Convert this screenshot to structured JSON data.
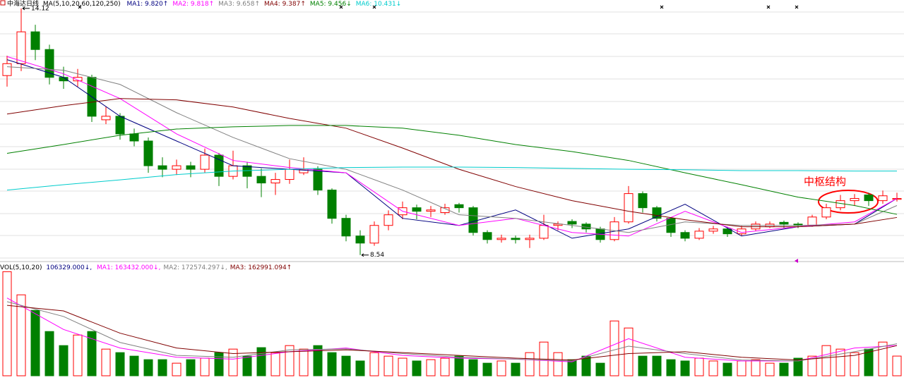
{
  "chart_data": {
    "type": "candlestick",
    "title": "中海达日线",
    "ma_params": "MA(5,10,20,60,120,250)",
    "annotation": "中枢结构",
    "ylim": [
      8.44,
      14.31
    ],
    "up_color": "#ff0000",
    "down_color": "#008000",
    "candles": [
      [
        12.6,
        13.05,
        12.35,
        12.87
      ],
      [
        12.87,
        14.12,
        12.7,
        13.59
      ],
      [
        13.59,
        13.75,
        12.95,
        13.19
      ],
      [
        13.19,
        13.3,
        12.4,
        12.56
      ],
      [
        12.56,
        12.8,
        12.3,
        12.48
      ],
      [
        12.48,
        12.75,
        12.35,
        12.56
      ],
      [
        12.56,
        12.62,
        11.55,
        11.68
      ],
      [
        11.6,
        11.9,
        11.5,
        11.68
      ],
      [
        11.68,
        11.75,
        11.15,
        11.28
      ],
      [
        11.28,
        11.4,
        11.0,
        11.12
      ],
      [
        11.12,
        11.2,
        10.4,
        10.56
      ],
      [
        10.56,
        10.75,
        10.3,
        10.48
      ],
      [
        10.48,
        10.7,
        10.35,
        10.56
      ],
      [
        10.56,
        10.65,
        10.3,
        10.48
      ],
      [
        10.48,
        10.95,
        10.4,
        10.8
      ],
      [
        10.8,
        10.85,
        10.1,
        10.32
      ],
      [
        10.32,
        10.9,
        10.25,
        10.56
      ],
      [
        10.56,
        10.65,
        10.05,
        10.32
      ],
      [
        10.32,
        10.5,
        9.85,
        10.17
      ],
      [
        10.17,
        10.4,
        9.9,
        10.25
      ],
      [
        10.25,
        10.7,
        10.15,
        10.48
      ],
      [
        10.4,
        10.75,
        10.35,
        10.48
      ],
      [
        10.48,
        10.55,
        9.9,
        10.01
      ],
      [
        10.01,
        10.05,
        9.25,
        9.37
      ],
      [
        9.37,
        9.45,
        8.85,
        8.97
      ],
      [
        8.97,
        9.1,
        8.54,
        8.81
      ],
      [
        8.81,
        9.3,
        8.75,
        9.21
      ],
      [
        9.21,
        9.55,
        9.1,
        9.45
      ],
      [
        9.45,
        9.75,
        9.35,
        9.61
      ],
      [
        9.61,
        9.68,
        9.35,
        9.53
      ],
      [
        9.53,
        9.65,
        9.4,
        9.56
      ],
      [
        9.5,
        9.7,
        9.45,
        9.61
      ],
      [
        9.68,
        9.72,
        9.5,
        9.61
      ],
      [
        9.61,
        9.65,
        8.98,
        9.05
      ],
      [
        9.05,
        9.1,
        8.8,
        8.89
      ],
      [
        8.89,
        9.0,
        8.82,
        8.92
      ],
      [
        8.92,
        8.98,
        8.8,
        8.89
      ],
      [
        8.89,
        9.0,
        8.7,
        8.92
      ],
      [
        8.92,
        9.45,
        8.88,
        9.21
      ],
      [
        9.21,
        9.3,
        9.1,
        9.24
      ],
      [
        9.3,
        9.35,
        9.15,
        9.24
      ],
      [
        9.24,
        9.28,
        9.05,
        9.13
      ],
      [
        9.13,
        9.18,
        8.82,
        8.89
      ],
      [
        8.89,
        9.4,
        8.85,
        9.29
      ],
      [
        9.29,
        10.1,
        9.25,
        9.93
      ],
      [
        9.93,
        9.98,
        9.5,
        9.61
      ],
      [
        9.61,
        9.65,
        9.3,
        9.37
      ],
      [
        9.37,
        9.4,
        8.95,
        9.05
      ],
      [
        9.05,
        9.1,
        8.85,
        8.92
      ],
      [
        8.92,
        9.15,
        8.88,
        9.08
      ],
      [
        9.08,
        9.2,
        9.02,
        9.13
      ],
      [
        9.13,
        9.18,
        8.95,
        9.02
      ],
      [
        9.02,
        9.2,
        8.98,
        9.13
      ],
      [
        9.13,
        9.3,
        9.08,
        9.24
      ],
      [
        9.18,
        9.3,
        9.15,
        9.24
      ],
      [
        9.28,
        9.32,
        9.15,
        9.24
      ],
      [
        9.24,
        9.28,
        9.15,
        9.21
      ],
      [
        9.21,
        9.45,
        9.18,
        9.4
      ],
      [
        9.4,
        9.7,
        9.35,
        9.61
      ],
      [
        9.61,
        9.9,
        9.55,
        9.77
      ],
      [
        9.77,
        9.92,
        9.65,
        9.82
      ],
      [
        9.9,
        9.95,
        9.65,
        9.77
      ],
      [
        9.77,
        10.0,
        9.7,
        9.88
      ],
      [
        9.8,
        9.95,
        9.75,
        9.82
      ]
    ],
    "ma_x": [
      0,
      4,
      8,
      12,
      16,
      20,
      24,
      28,
      32,
      36,
      40,
      44,
      48,
      52,
      56,
      60,
      63
    ],
    "series": [
      {
        "name": "MA1: 9.820↑",
        "color": "#000080",
        "values": [
          12.96,
          12.56,
          11.68,
          11.12,
          10.56,
          10.48,
          10.4,
          9.37,
          9.21,
          9.56,
          8.92,
          9.13,
          9.69,
          8.97,
          9.18,
          9.24,
          9.82
        ]
      },
      {
        "name": "MA2: 9.818↑",
        "color": "#ff00ff",
        "values": [
          13.03,
          12.64,
          12.08,
          11.28,
          10.68,
          10.52,
          10.4,
          9.53,
          9.21,
          9.37,
          9.05,
          8.97,
          9.53,
          9.05,
          9.18,
          9.29,
          9.82
        ]
      },
      {
        "name": "MA3: 9.658↑",
        "color": "#808080",
        "values": [
          12.8,
          12.72,
          12.4,
          11.76,
          11.2,
          10.72,
          10.48,
          10.01,
          9.45,
          9.37,
          9.21,
          9.05,
          9.29,
          9.21,
          9.21,
          9.24,
          9.66
        ]
      },
      {
        "name": "MA4: 9.387↑",
        "color": "#800000",
        "values": [
          11.73,
          11.92,
          12.08,
          12.05,
          11.89,
          11.63,
          11.41,
          10.96,
          10.48,
          10.09,
          9.77,
          9.53,
          9.34,
          9.18,
          9.18,
          9.24,
          9.39
        ]
      },
      {
        "name": "MA5: 9.456↓",
        "color": "#008000",
        "values": [
          10.84,
          11.04,
          11.25,
          11.39,
          11.44,
          11.47,
          11.47,
          11.41,
          11.25,
          11.04,
          10.88,
          10.68,
          10.4,
          10.13,
          9.85,
          9.66,
          9.46
        ]
      },
      {
        "name": "MA6: 10.431↓",
        "color": "#00cccc",
        "values": [
          10.01,
          10.13,
          10.24,
          10.36,
          10.44,
          10.48,
          10.52,
          10.53,
          10.53,
          10.52,
          10.5,
          10.48,
          10.47,
          10.45,
          10.45,
          10.44,
          10.44
        ]
      }
    ],
    "volume": {
      "title": "VOL(5,10,20)",
      "value_label": "106329.000↓,",
      "ylim": [
        0,
        590000
      ],
      "values": [
        562000,
        437000,
        353000,
        239000,
        163000,
        220000,
        239000,
        144000,
        125000,
        106000,
        87000,
        87000,
        68000,
        87000,
        95000,
        125000,
        144000,
        106000,
        152000,
        125000,
        163000,
        144000,
        163000,
        125000,
        106000,
        80000,
        125000,
        106000,
        95000,
        80000,
        87000,
        95000,
        106000,
        87000,
        68000,
        80000,
        68000,
        125000,
        182000,
        125000,
        87000,
        106000,
        68000,
        296000,
        258000,
        106000,
        106000,
        87000,
        80000,
        95000,
        80000,
        68000,
        80000,
        87000,
        68000,
        68000,
        95000,
        106000,
        163000,
        144000,
        125000,
        144000,
        182000,
        106329
      ],
      "series": [
        {
          "name": "MA1: 163432.000↓,",
          "color": "#ff00ff",
          "values": [
            420000,
            250000,
            150000,
            100000,
            90000,
            130000,
            150000,
            110000,
            95000,
            90000,
            75000,
            200000,
            100000,
            80000,
            80000,
            150000,
            163432
          ]
        },
        {
          "name": "MA2: 172574.297↓,",
          "color": "#808080",
          "values": [
            400000,
            320000,
            180000,
            110000,
            100000,
            140000,
            145000,
            120000,
            100000,
            90000,
            80000,
            160000,
            120000,
            85000,
            80000,
            130000,
            172574
          ]
        },
        {
          "name": "MA3: 162991.094↑",
          "color": "#800000",
          "values": [
            380000,
            350000,
            230000,
            150000,
            120000,
            130000,
            140000,
            125000,
            110000,
            95000,
            85000,
            120000,
            130000,
            100000,
            85000,
            110000,
            162991
          ]
        }
      ]
    }
  }
}
